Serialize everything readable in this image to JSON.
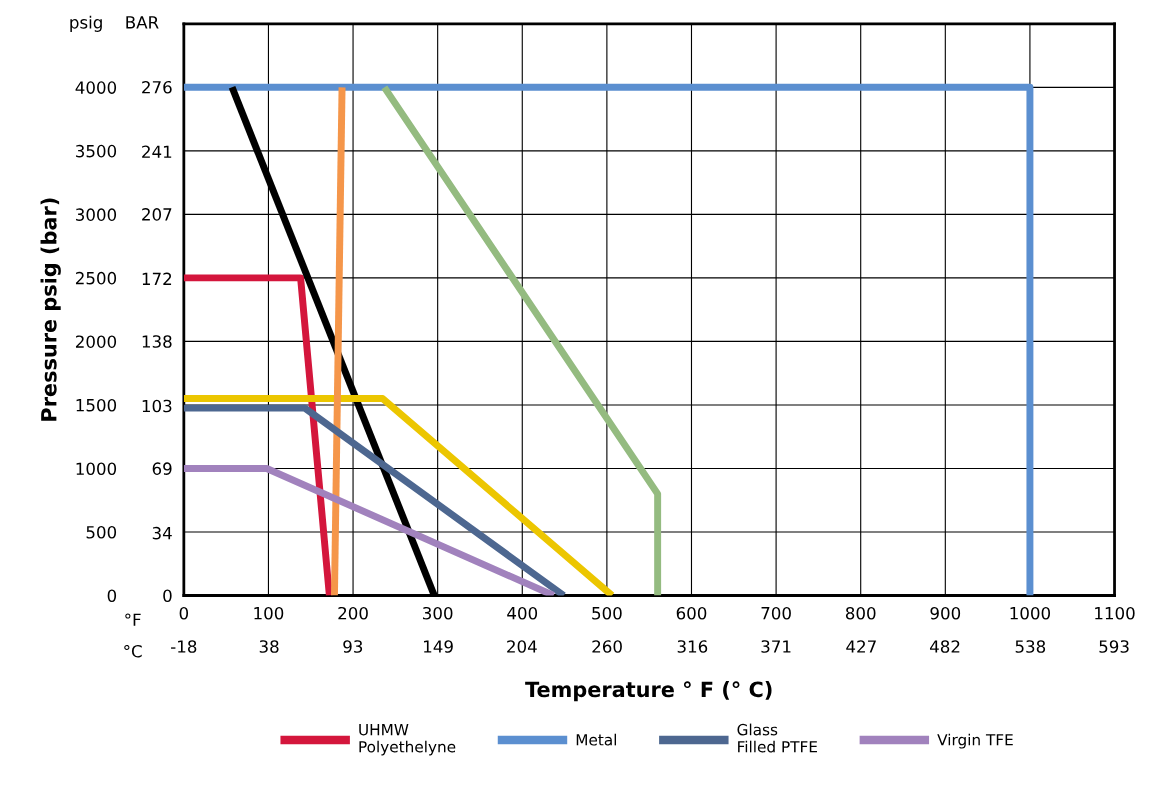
{
  "chart_data": {
    "type": "line",
    "xlabel": "Temperature ° F (° C)",
    "ylabel": "Pressure psig (bar)",
    "xlim": [
      0,
      1100
    ],
    "ylim": [
      0,
      4500
    ],
    "xticks": [
      0,
      100,
      200,
      300,
      400,
      500,
      600,
      700,
      800,
      900,
      1000,
      1100
    ],
    "x2lim": [
      -18,
      593.3
    ],
    "x2ticks": [
      -18,
      38,
      93,
      149,
      204,
      260,
      316,
      371,
      427,
      482,
      538,
      593
    ],
    "yticks": [
      0,
      500,
      1000,
      1500,
      2000,
      2500,
      3000,
      3500,
      4000
    ],
    "y2lim": [
      0,
      310.3
    ],
    "y2ticks": [
      0,
      34,
      69,
      103,
      138,
      172,
      207,
      241,
      276
    ],
    "annotations": [
      "psig",
      "BAR",
      "°F",
      "°C"
    ],
    "grid": true,
    "legend": "bottom",
    "marker": "none",
    "line_style": "solid",
    "series": [
      {
        "name": "UHMW\nPolyethelyne",
        "color": "#d4163c",
        "x": [
          0,
          138,
          172
        ],
        "values": [
          2500,
          2500,
          0
        ]
      },
      {
        "name": "Metal",
        "color": "#5b8fd0",
        "x": [
          0,
          1000,
          1000
        ],
        "values": [
          4000,
          4000,
          0
        ]
      },
      {
        "color": "#000000",
        "x": [
          57,
          296
        ],
        "values": [
          4000,
          0
        ]
      },
      {
        "color": "#ecc600",
        "x": [
          0,
          235,
          506
        ],
        "values": [
          1550,
          1550,
          0
        ]
      },
      {
        "color": "#f5964a",
        "x": [
          178,
          187
        ],
        "values": [
          0,
          4000
        ]
      },
      {
        "color": "#94bb80",
        "x": [
          237,
          560,
          560
        ],
        "values": [
          4000,
          800,
          0
        ]
      },
      {
        "name": "Glass\nFilled PTFE",
        "color": "#4d6790",
        "x": [
          0,
          143,
          449
        ],
        "values": [
          1475,
          1475,
          0
        ]
      },
      {
        "name": "Virgin TFE",
        "color": "#a182bd",
        "x": [
          0,
          98,
          437
        ],
        "values": [
          1000,
          1000,
          0
        ]
      }
    ]
  }
}
